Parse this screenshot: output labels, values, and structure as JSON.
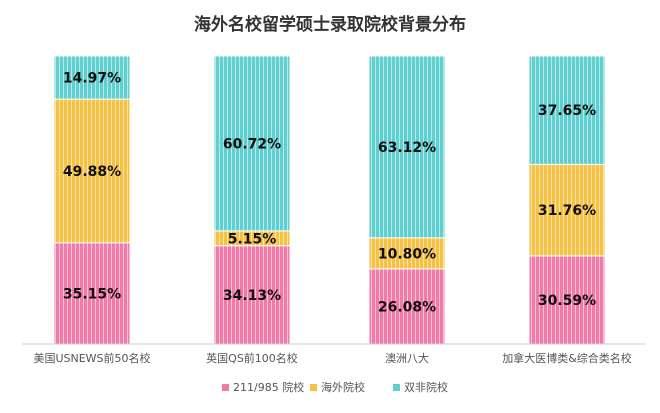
{
  "chart_data": {
    "type": "bar",
    "stacked": true,
    "percent": true,
    "title": "海外名校留学硕士录取院校背景分布",
    "categories": [
      "美国USNEWS前50名校",
      "英国QS前100名校",
      "澳洲八大",
      "加拿大医博类&综合类名校"
    ],
    "series": [
      {
        "name": "211/985 院校",
        "color": "#f27aa9",
        "values": [
          35.15,
          34.13,
          26.08,
          30.59
        ],
        "labels": [
          "35.15%",
          "34.13%",
          "26.08%",
          "30.59%"
        ]
      },
      {
        "name": "海外院校",
        "color": "#f6c244",
        "values": [
          49.88,
          5.15,
          10.8,
          31.76
        ],
        "labels": [
          "49.88%",
          "5.15%",
          "10.80%",
          "31.76%"
        ]
      },
      {
        "name": "双非院校",
        "color": "#5fcfcf",
        "values": [
          14.97,
          60.72,
          63.12,
          37.65
        ],
        "labels": [
          "14.97%",
          "60.72%",
          "63.12%",
          "37.65%"
        ]
      }
    ],
    "ylim": [
      0,
      100
    ],
    "grid": false,
    "legend_position": "bottom"
  }
}
